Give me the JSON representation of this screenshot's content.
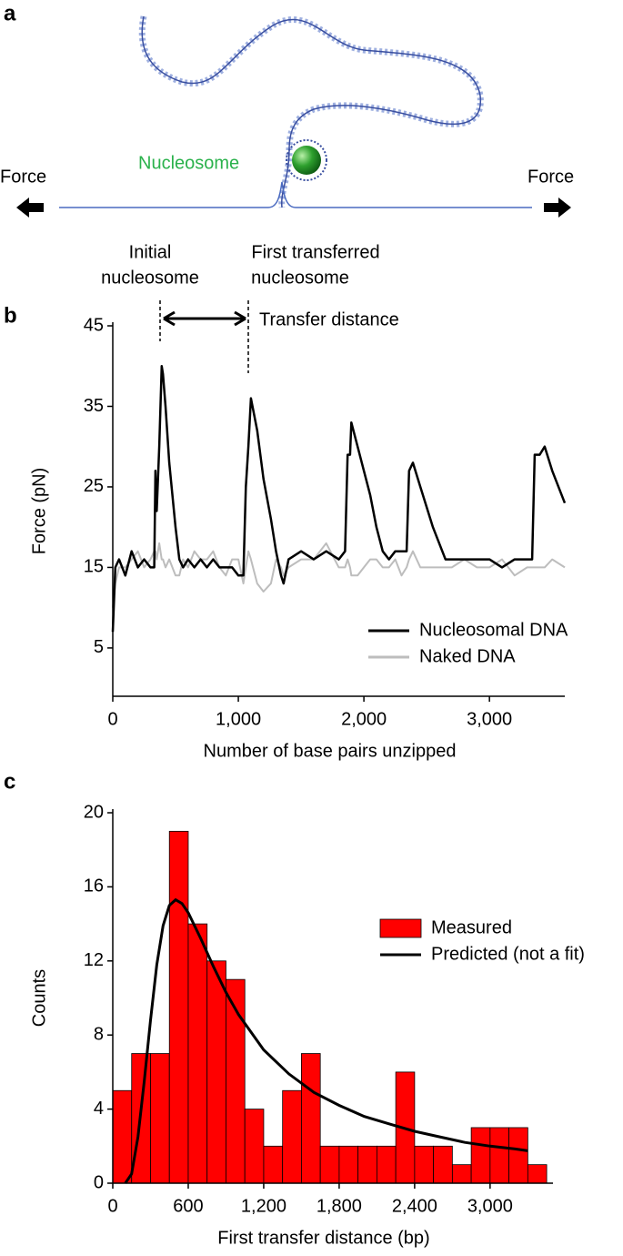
{
  "panel_labels": [
    "a",
    "b",
    "c"
  ],
  "diagram": {
    "nucleosome_label": "Nucleosome",
    "force_left": "Force",
    "force_right": "Force"
  },
  "chart_data": [
    {
      "type": "line",
      "x_label": "Number of base pairs unzipped",
      "y_label": "Force (pN)",
      "annotations": [
        "Initial",
        "nucleosome",
        "First transferred",
        "nucleosome",
        "Transfer distance"
      ],
      "x": [
        0,
        20,
        50,
        100,
        150,
        200,
        250,
        300,
        330,
        340,
        350,
        370,
        390,
        400,
        420,
        450,
        500,
        530,
        560,
        600,
        650,
        700,
        750,
        800,
        850,
        900,
        950,
        1000,
        1040,
        1060,
        1080,
        1100,
        1150,
        1200,
        1260,
        1300,
        1340,
        1360,
        1400,
        1500,
        1600,
        1700,
        1800,
        1850,
        1870,
        1890,
        1900,
        1950,
        2000,
        2050,
        2100,
        2150,
        2200,
        2250,
        2300,
        2340,
        2360,
        2390,
        2450,
        2550,
        2650,
        2700,
        2800,
        2900,
        3000,
        3100,
        3200,
        3300,
        3340,
        3360,
        3400,
        3440,
        3500,
        3600
      ],
      "series": [
        {
          "name": "Nucleosomal DNA",
          "color": "#000000",
          "values": [
            7,
            15,
            16,
            14,
            17,
            15,
            16,
            15,
            15,
            27,
            22,
            30,
            40,
            39,
            35,
            28,
            20,
            16,
            15,
            16,
            15,
            16,
            15,
            16,
            15,
            15,
            15,
            14,
            14,
            25,
            30,
            36,
            32,
            26,
            21,
            17,
            14,
            13,
            16,
            17,
            16,
            17,
            16,
            17,
            29,
            29,
            33,
            30,
            27,
            24,
            20,
            17,
            16,
            17,
            17,
            17,
            27,
            28,
            25,
            20,
            16,
            16,
            16,
            16,
            16,
            15,
            16,
            16,
            16,
            29,
            29,
            30,
            27,
            23
          ]
        },
        {
          "name": "Naked DNA",
          "color": "#bdbdbd",
          "values": [
            10,
            13,
            15,
            15,
            16,
            17,
            15,
            16,
            17,
            17,
            16,
            18,
            16,
            16,
            15,
            16,
            14,
            14,
            16,
            15,
            17,
            16,
            16,
            17,
            15,
            14,
            16,
            16,
            13,
            15,
            17,
            16,
            13,
            12,
            13,
            16,
            15,
            14,
            15,
            16,
            16,
            18,
            15,
            15,
            16,
            15,
            14,
            14,
            15,
            16,
            16,
            15,
            15,
            16,
            14,
            15,
            16,
            17,
            15,
            15,
            15,
            15,
            16,
            15,
            15,
            16,
            14,
            15,
            15,
            15,
            15,
            15,
            16,
            15
          ]
        }
      ],
      "xlim": [
        0,
        3600
      ],
      "xticks": [
        0,
        {
          "value": 1000,
          "label": "1,000"
        },
        {
          "value": 2000,
          "label": "2,000"
        },
        {
          "value": 3000,
          "label": "3,000"
        }
      ],
      "ylim": [
        -1,
        45
      ],
      "yticks": [
        5,
        15,
        25,
        35,
        45
      ],
      "legend": "lower right"
    },
    {
      "type": "histogram",
      "x_label": "First transfer distance (bp)",
      "y_label": "Counts",
      "bins": [
        0,
        150,
        300,
        450,
        600,
        750,
        900,
        1050,
        1200,
        1350,
        1500,
        1650,
        1800,
        1950,
        2100,
        2250,
        2400,
        2550,
        2700,
        2850,
        3000,
        3150,
        3300,
        3450
      ],
      "series": [
        {
          "name": "Measured",
          "color": "#ff0000",
          "values": [
            5,
            7,
            7,
            19,
            14,
            12,
            11,
            4,
            2,
            5,
            7,
            2,
            2,
            2,
            2,
            6,
            2,
            2,
            1,
            3,
            3,
            3,
            1
          ]
        },
        {
          "name": "Predicted (not a fit)",
          "color": "#000000",
          "type": "line",
          "x": [
            100,
            150,
            200,
            250,
            300,
            350,
            400,
            450,
            500,
            550,
            600,
            700,
            800,
            900,
            1000,
            1200,
            1400,
            1600,
            1800,
            2000,
            2200,
            2400,
            2600,
            2800,
            3000,
            3200,
            3300
          ],
          "values": [
            0,
            0.5,
            2.5,
            5.5,
            8.8,
            11.8,
            13.9,
            15,
            15.3,
            15.1,
            14.6,
            13.2,
            11.7,
            10.3,
            9.1,
            7.2,
            5.9,
            4.9,
            4.2,
            3.6,
            3.2,
            2.8,
            2.5,
            2.2,
            2,
            1.85,
            1.75
          ]
        }
      ],
      "xlim": [
        0,
        3500
      ],
      "xticks": [
        0,
        600,
        {
          "value": 1200,
          "label": "1,200"
        },
        {
          "value": 1800,
          "label": "1,800"
        },
        {
          "value": 2400,
          "label": "2,400"
        },
        {
          "value": 3000,
          "label": "3,000"
        }
      ],
      "ylim": [
        0,
        20
      ],
      "yticks": [
        0,
        4,
        8,
        12,
        16,
        20
      ],
      "legend": "upper right"
    }
  ]
}
